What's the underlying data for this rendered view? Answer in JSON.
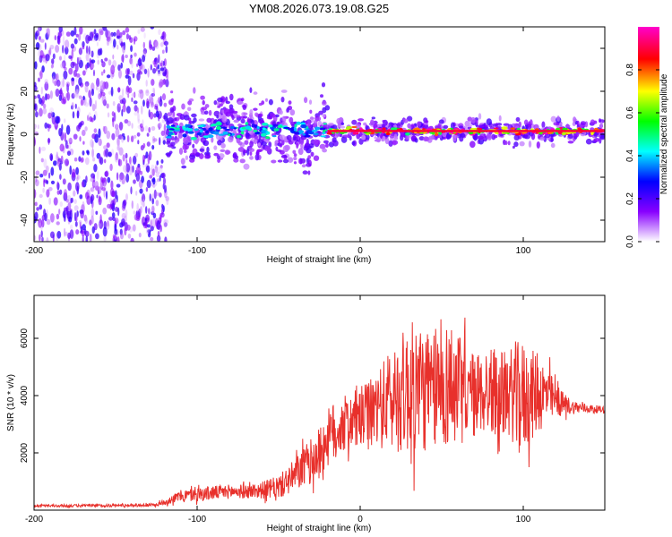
{
  "page": {
    "title": "YM08.2026.073.19.08.G25"
  },
  "chart_data": [
    {
      "type": "heatmap",
      "name": "spectrogram",
      "title": "YM08.2026.073.19.08.G25",
      "xlabel": "Height of straight line (km)",
      "ylabel": "Frequency (Hz)",
      "xlim": [
        -200,
        150
      ],
      "ylim": [
        -50,
        50
      ],
      "xticks": [
        -200,
        -100,
        0,
        100
      ],
      "xtick_labels": [
        "-200",
        "-100",
        "0",
        "100"
      ],
      "yticks": [
        -40,
        -20,
        0,
        20,
        40
      ],
      "ytick_labels": [
        "-40",
        "-20",
        "0",
        "20",
        "40"
      ],
      "colorbar": {
        "label": "Normalized spectral amplitude",
        "range": [
          0,
          1
        ],
        "ticks": [
          0.0,
          0.2,
          0.4,
          0.6,
          0.8
        ],
        "tick_labels": [
          "0.0",
          "0.2",
          "0.4",
          "0.6",
          "0.8"
        ],
        "colors": [
          "#ffffff",
          "#8800ff",
          "#0000ff",
          "#00ffff",
          "#00ff00",
          "#ffff00",
          "#ff0000",
          "#ff00cc"
        ]
      },
      "regions": [
        {
          "x_range": [
            -200,
            -118
          ],
          "description": "broadband noise",
          "amplitude": 0.1
        },
        {
          "x_range": [
            -118,
            -20
          ],
          "freq_center_hz": 2,
          "freq_spread_hz": 8,
          "amplitude": 0.45
        },
        {
          "x_range": [
            -20,
            150
          ],
          "freq_center_hz": 1.5,
          "freq_spread_hz": 3,
          "amplitude": 0.9
        }
      ]
    },
    {
      "type": "line",
      "name": "snr",
      "xlabel": "Height of straight line (km)",
      "ylabel": "SNR (10 * v/v)",
      "xlim": [
        -200,
        150
      ],
      "ylim": [
        0,
        7500
      ],
      "xticks": [
        -200,
        -100,
        0,
        100
      ],
      "xtick_labels": [
        "-200",
        "-100",
        "0",
        "100"
      ],
      "yticks": [
        2000,
        4000,
        6000
      ],
      "ytick_labels": [
        "2000",
        "4000",
        "6000"
      ],
      "color": "#e8302b",
      "series": [
        {
          "name": "SNR",
          "x": [
            -200,
            -180,
            -160,
            -140,
            -125,
            -110,
            -100,
            -90,
            -80,
            -70,
            -60,
            -50,
            -40,
            -35,
            -30,
            -25,
            -20,
            -15,
            -10,
            -5,
            0,
            5,
            10,
            15,
            20,
            25,
            30,
            35,
            40,
            45,
            50,
            55,
            60,
            65,
            70,
            75,
            80,
            85,
            90,
            95,
            100,
            105,
            110,
            115,
            120,
            125,
            130,
            140,
            150
          ],
          "values": [
            150,
            150,
            160,
            170,
            180,
            500,
            550,
            600,
            650,
            650,
            700,
            800,
            1200,
            1500,
            1700,
            2000,
            2500,
            2800,
            3000,
            3100,
            3200,
            3300,
            3500,
            3700,
            3900,
            4100,
            4200,
            4300,
            4200,
            4100,
            4300,
            4400,
            4200,
            4100,
            4000,
            4100,
            4200,
            4100,
            4000,
            4100,
            3900,
            4000,
            4100,
            4000,
            3800,
            3700,
            3600,
            3550,
            3500
          ],
          "noise_amplitude": [
            40,
            50,
            50,
            50,
            60,
            200,
            250,
            250,
            250,
            250,
            300,
            400,
            600,
            700,
            800,
            900,
            1000,
            1100,
            1000,
            1000,
            1100,
            1200,
            1300,
            1600,
            1900,
            2100,
            2300,
            2400,
            2200,
            2000,
            2100,
            2300,
            2000,
            1700,
            1500,
            1500,
            1600,
            1500,
            1500,
            1800,
            2000,
            1600,
            1400,
            1000,
            600,
            400,
            250,
            150,
            120
          ]
        }
      ]
    }
  ]
}
